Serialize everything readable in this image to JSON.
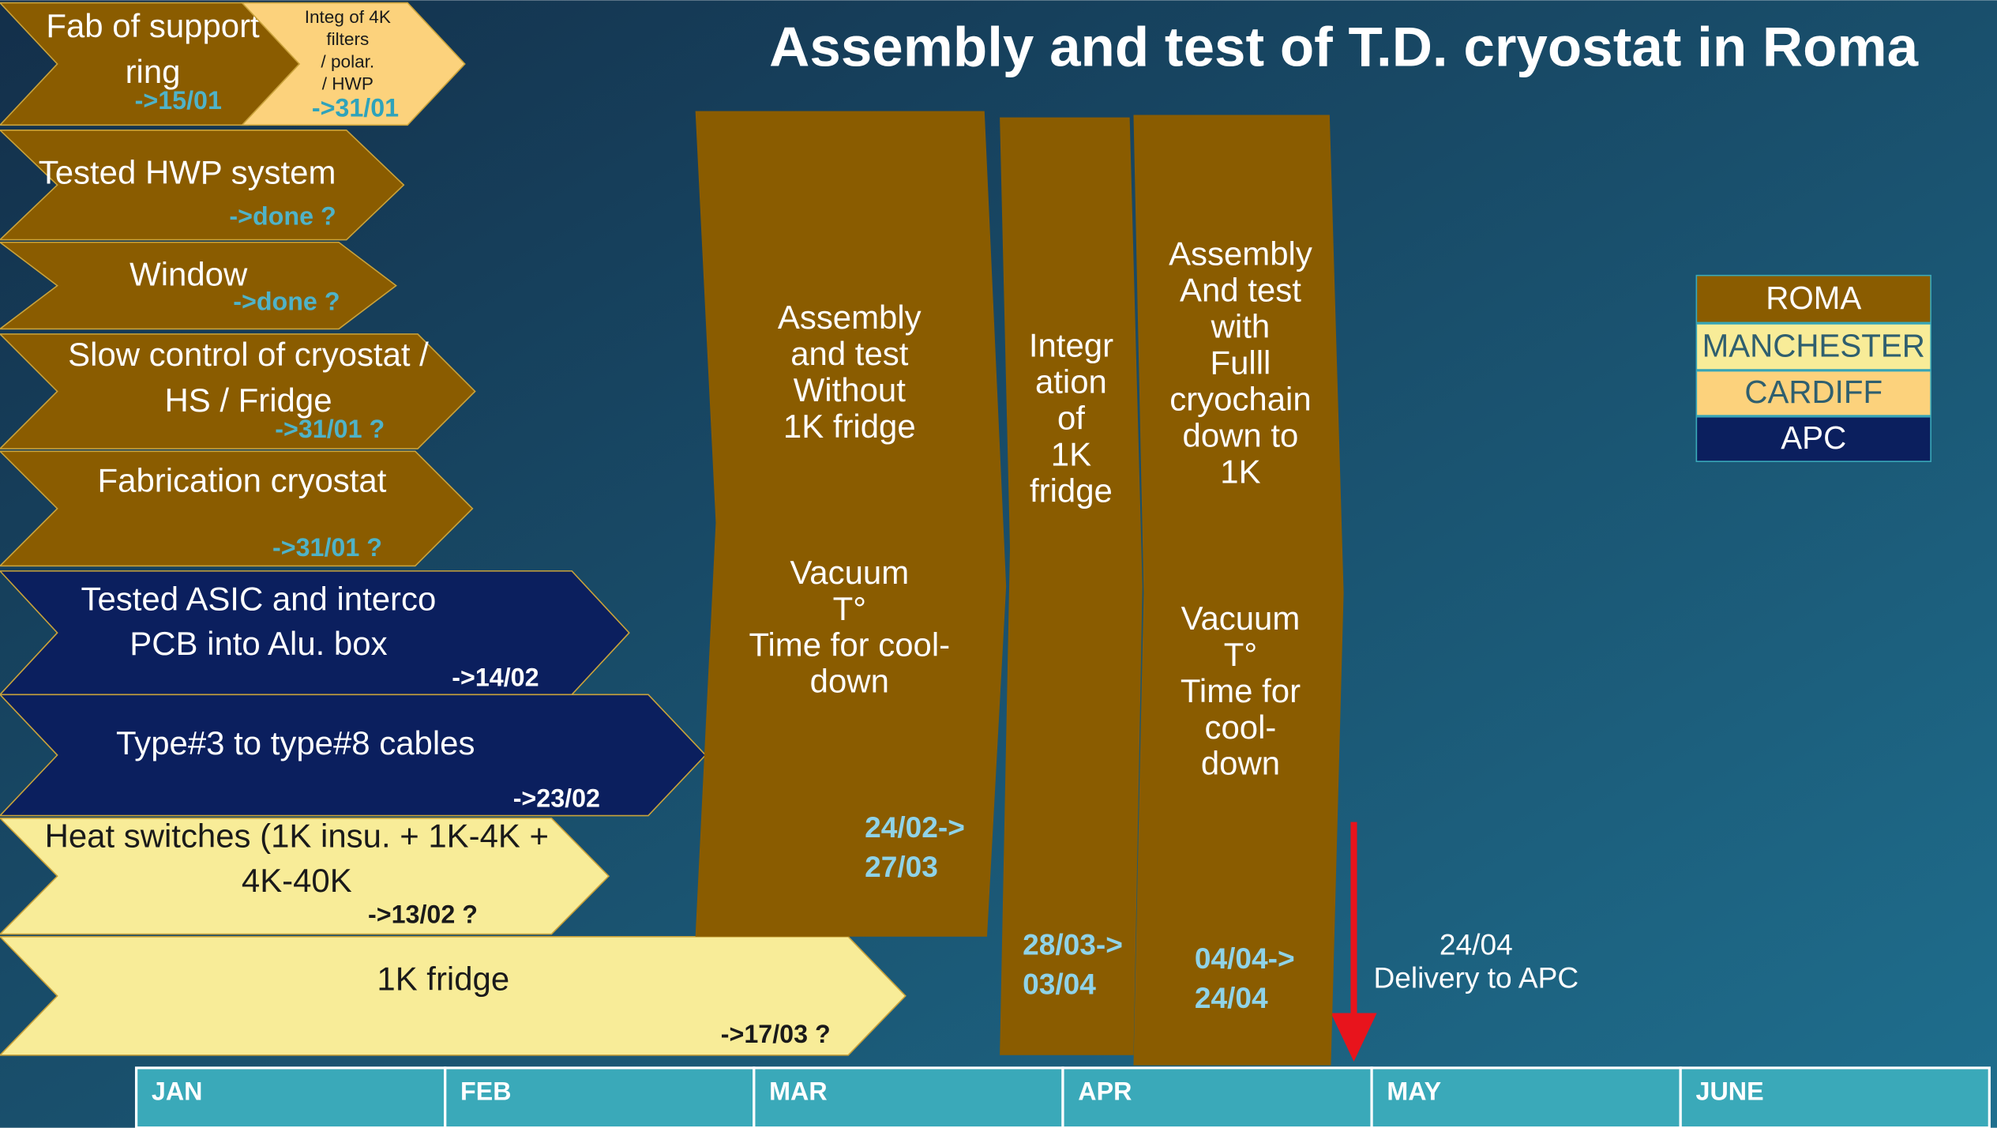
{
  "header": {
    "title": "Assembly and test of T.D. cryostat in Roma"
  },
  "legend": [
    {
      "label": "ROMA",
      "color": "#8a5c00",
      "text_color": "#ffffff"
    },
    {
      "label": "MANCHESTER",
      "color": "#f8ec98",
      "text_color": "#2f5f6f"
    },
    {
      "label": "CARDIFF",
      "color": "#fcd27c",
      "text_color": "#2f5f6f"
    },
    {
      "label": "APC",
      "color": "#0b1f5e",
      "text_color": "#ffffff"
    }
  ],
  "tasks": [
    {
      "lines": [
        "Fab of support",
        "ring"
      ],
      "date": "->15/01",
      "color": "#8a5c00",
      "text_color": "#ffffff",
      "date_color": "#4fb3c8"
    },
    {
      "lines": [
        "Integ of 4K",
        "filters",
        "/ polar.",
        "/ HWP"
      ],
      "date": "->31/01",
      "color": "#fcd27c",
      "text_color": "#1a1a1a",
      "date_color": "#2fa3bb"
    },
    {
      "lines": [
        "Tested HWP system"
      ],
      "date": "->done ?",
      "color": "#8a5c00",
      "text_color": "#ffffff",
      "date_color": "#4fb3c8"
    },
    {
      "lines": [
        "Window"
      ],
      "date": "->done ?",
      "color": "#8a5c00",
      "text_color": "#ffffff",
      "date_color": "#4fb3c8"
    },
    {
      "lines": [
        "Slow control of cryostat /",
        "HS / Fridge"
      ],
      "date": "->31/01 ?",
      "color": "#8a5c00",
      "text_color": "#ffffff",
      "date_color": "#4fb3c8"
    },
    {
      "lines": [
        "Fabrication cryostat"
      ],
      "date": "->31/01 ?",
      "color": "#8a5c00",
      "text_color": "#ffffff",
      "date_color": "#4fb3c8"
    },
    {
      "lines": [
        "Tested ASIC and interco",
        "PCB into Alu. box"
      ],
      "date": "->14/02",
      "color": "#0b1f5e",
      "text_color": "#ffffff",
      "date_color": "#ffffff"
    },
    {
      "lines": [
        "Type#3 to type#8 cables"
      ],
      "date": "->23/02",
      "color": "#0b1f5e",
      "text_color": "#ffffff",
      "date_color": "#ffffff"
    },
    {
      "lines": [
        "Heat switches (1K insu. + 1K-4K +",
        "4K-40K"
      ],
      "date": "->13/02 ?",
      "color": "#f8ec98",
      "text_color": "#1a1a1a",
      "date_color": "#1a1a1a"
    },
    {
      "lines": [
        "1K fridge"
      ],
      "date": "->17/03 ?",
      "color": "#f8ec98",
      "text_color": "#1a1a1a",
      "date_color": "#1a1a1a"
    }
  ],
  "phases": [
    {
      "lines": [
        "Assembly",
        "and test",
        "Without",
        "1K fridge"
      ],
      "details": [
        "Vacuum",
        "T°",
        "Time for cool-",
        "down"
      ],
      "dates": [
        "24/02->",
        "27/03"
      ]
    },
    {
      "lines": [
        "Integr",
        "ation",
        "of",
        "1K",
        "fridge"
      ],
      "details": [],
      "dates": [
        "28/03->",
        "03/04"
      ]
    },
    {
      "lines": [
        "Assembly",
        "And test",
        "with",
        "Fulll",
        "cryochain",
        "down to",
        "1K"
      ],
      "details": [
        "Vacuum",
        "T°",
        "Time for",
        "cool-",
        "down"
      ],
      "dates": [
        "04/04->",
        "24/04"
      ]
    }
  ],
  "months": [
    "JAN",
    "FEB",
    "MAR",
    "APR",
    "MAY",
    "JUNE"
  ],
  "delivery": [
    "24/04",
    "Delivery to APC"
  ]
}
